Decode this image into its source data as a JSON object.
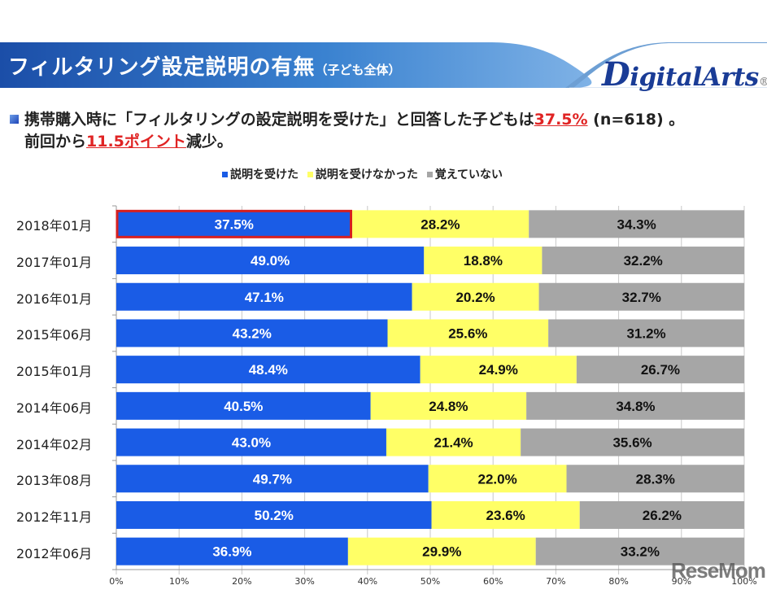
{
  "header": {
    "title": "フィルタリング設定説明の有無",
    "subtitle": "（子ども全体）",
    "logo_initial": "D",
    "logo_rest": "igitalArts",
    "logo_mark": "®"
  },
  "lead": {
    "line1_pre": "携帯購入時に「フィルタリングの設定説明を受けた」と回答した子どもは",
    "line1_highlight": "37.5%",
    "line1_post": " (n=618) 。",
    "line2_pre": "前回から",
    "line2_highlight": "11.5ポイント",
    "line2_post": "減少。"
  },
  "watermark": "ReseMom",
  "colors": {
    "header_blue": "#1f57b8",
    "series_blue": "#1a5ce6",
    "series_yellow": "#ffff66",
    "series_gray": "#a6a6a6",
    "highlight_red": "#d62020"
  },
  "chart_data": {
    "type": "bar",
    "orientation": "horizontal",
    "stacked": "percent",
    "title": "フィルタリング設定説明の有無（子ども全体）",
    "xlabel": "",
    "ylabel": "",
    "xlim": [
      0,
      100
    ],
    "x_ticks": [
      "0%",
      "10%",
      "20%",
      "30%",
      "40%",
      "50%",
      "60%",
      "70%",
      "80%",
      "90%",
      "100%"
    ],
    "grid": true,
    "legend_position": "top",
    "highlighted_category": "2018年01月",
    "categories": [
      "2018年01月",
      "2017年01月",
      "2016年01月",
      "2015年06月",
      "2015年01月",
      "2014年06月",
      "2014年02月",
      "2013年08月",
      "2012年11月",
      "2012年06月"
    ],
    "series": [
      {
        "name": "説明を受けた",
        "color": "#1a5ce6",
        "values": [
          37.5,
          49.0,
          47.1,
          43.2,
          48.4,
          40.5,
          43.0,
          49.7,
          50.2,
          36.9
        ]
      },
      {
        "name": "説明を受けなかった",
        "color": "#ffff66",
        "values": [
          28.2,
          18.8,
          20.2,
          25.6,
          24.9,
          24.8,
          21.4,
          22.0,
          23.6,
          29.9
        ]
      },
      {
        "name": "覚えていない",
        "color": "#a6a6a6",
        "values": [
          34.3,
          32.2,
          32.7,
          31.2,
          26.7,
          34.8,
          35.6,
          28.3,
          26.2,
          33.2
        ]
      }
    ]
  }
}
